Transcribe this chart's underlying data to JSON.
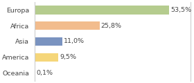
{
  "categories": [
    "Europa",
    "Africa",
    "Asia",
    "America",
    "Oceania"
  ],
  "values": [
    53.5,
    25.8,
    11.0,
    9.5,
    0.1
  ],
  "labels": [
    "53,5%",
    "25,8%",
    "11,0%",
    "9,5%",
    "0,1%"
  ],
  "bar_colors": [
    "#b5cc8e",
    "#f2bc8d",
    "#7a93c0",
    "#f5d67a",
    "#e8e8e8"
  ],
  "background_color": "#ffffff",
  "xlim": [
    0,
    62
  ],
  "bar_height": 0.55,
  "label_fontsize": 6.8,
  "tick_fontsize": 6.8,
  "border_color": "#cccccc"
}
